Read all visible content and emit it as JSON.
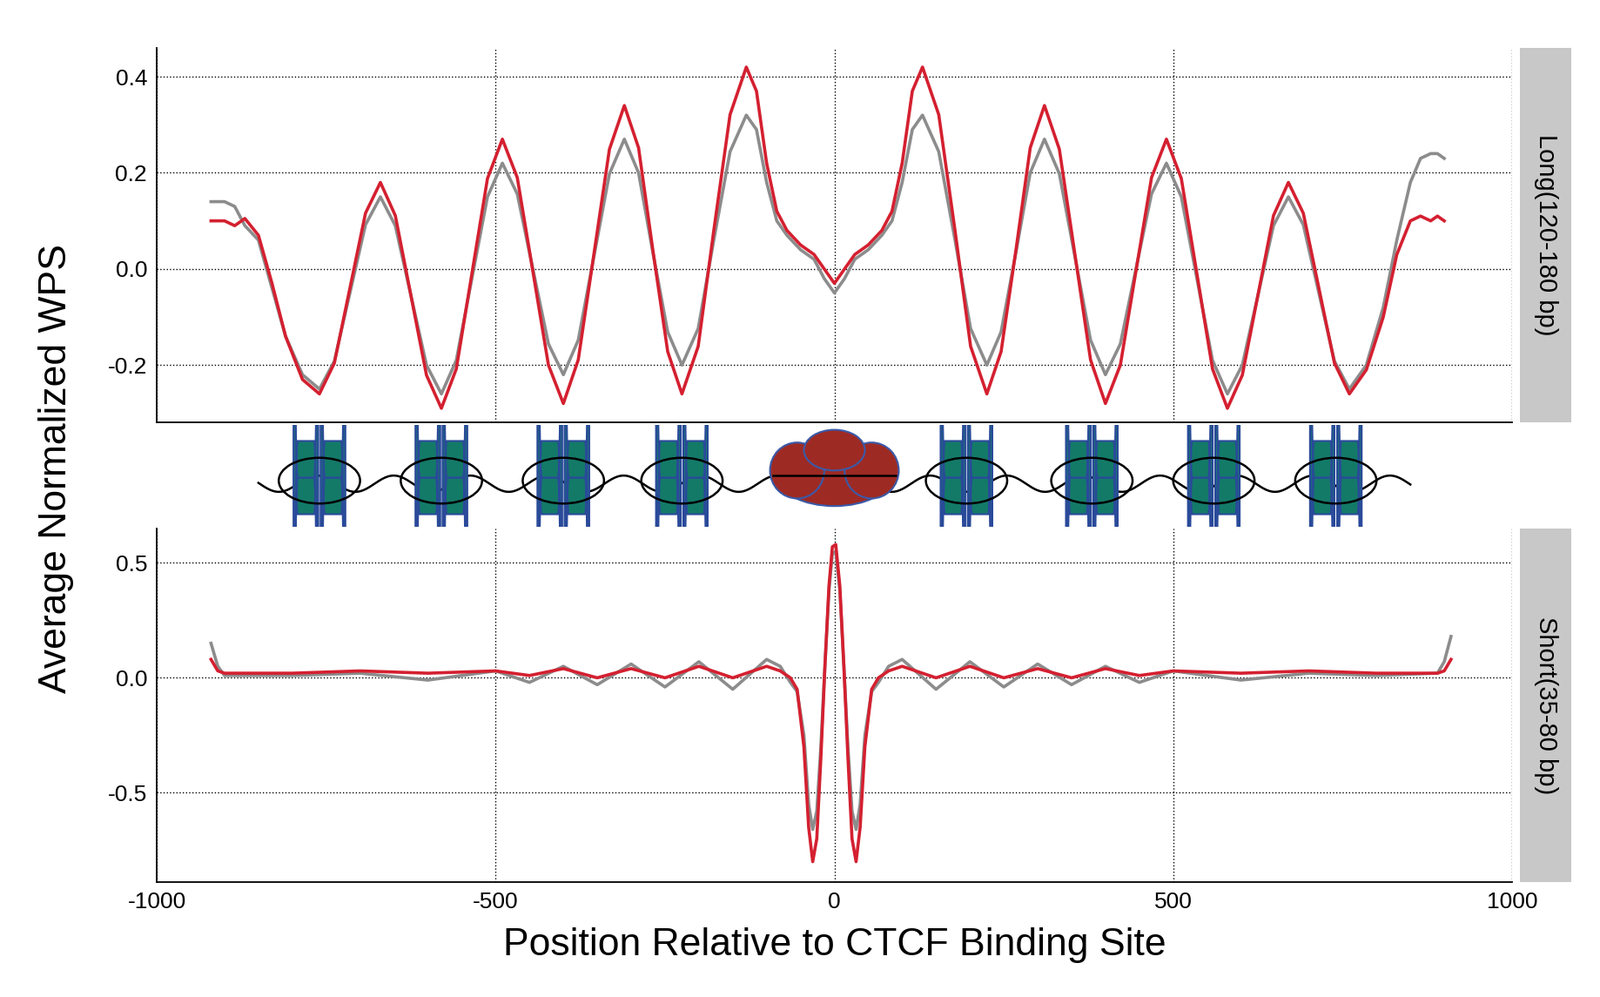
{
  "chart_data": [
    {
      "type": "line",
      "title": "Long(120-180 bp)",
      "y_label": "Average Normalized WPS",
      "x": [
        -920,
        -900,
        -885,
        -870,
        -850,
        -830,
        -810,
        -785,
        -760,
        -738,
        -715,
        -692,
        -670,
        -648,
        -625,
        -602,
        -580,
        -558,
        -535,
        -512,
        -490,
        -468,
        -445,
        -422,
        -400,
        -378,
        -355,
        -332,
        -310,
        -289,
        -268,
        -246,
        -225,
        -201,
        -178,
        -154,
        -130,
        -115,
        -100,
        -85,
        -70,
        -50,
        -30,
        -15,
        0,
        15,
        30,
        50,
        70,
        85,
        100,
        115,
        130,
        154,
        178,
        201,
        225,
        246,
        268,
        289,
        310,
        332,
        355,
        378,
        400,
        422,
        445,
        468,
        490,
        512,
        535,
        558,
        580,
        602,
        625,
        648,
        670,
        692,
        715,
        738,
        760,
        785,
        810,
        830,
        850,
        865,
        880,
        890,
        900
      ],
      "series": [
        {
          "color": "#8c8c8c",
          "values": [
            0.14,
            0.14,
            0.13,
            0.09,
            0.06,
            -0.04,
            -0.14,
            -0.22,
            -0.25,
            -0.192,
            -0.05,
            0.092,
            0.15,
            0.09,
            -0.055,
            -0.2,
            -0.26,
            -0.19,
            -0.02,
            0.15,
            0.22,
            0.156,
            0.0,
            -0.156,
            -0.22,
            -0.148,
            0.025,
            0.198,
            0.27,
            0.2,
            0.035,
            -0.131,
            -0.2,
            -0.124,
            0.06,
            0.244,
            0.32,
            0.29,
            0.18,
            0.1,
            0.07,
            0.04,
            0.02,
            -0.02,
            -0.05,
            -0.02,
            0.02,
            0.04,
            0.07,
            0.1,
            0.18,
            0.29,
            0.32,
            0.244,
            0.06,
            -0.124,
            -0.2,
            -0.131,
            0.035,
            0.2,
            0.27,
            0.198,
            0.025,
            -0.148,
            -0.22,
            -0.156,
            0.0,
            0.156,
            0.22,
            0.15,
            -0.02,
            -0.19,
            -0.26,
            -0.2,
            -0.055,
            0.09,
            0.15,
            0.092,
            -0.05,
            -0.192,
            -0.25,
            -0.2,
            -0.08,
            0.06,
            0.18,
            0.23,
            0.24,
            0.24,
            0.23
          ]
        },
        {
          "color": "#d42030",
          "values": [
            0.1,
            0.1,
            0.09,
            0.105,
            0.07,
            -0.03,
            -0.14,
            -0.23,
            -0.26,
            -0.196,
            -0.04,
            0.116,
            0.18,
            0.111,
            -0.055,
            -0.221,
            -0.29,
            -0.208,
            -0.01,
            0.188,
            0.27,
            0.19,
            -0.005,
            -0.2,
            -0.28,
            -0.189,
            0.03,
            0.249,
            0.34,
            0.252,
            0.04,
            -0.172,
            -0.26,
            -0.161,
            0.08,
            0.321,
            0.42,
            0.37,
            0.22,
            0.12,
            0.08,
            0.05,
            0.03,
            0.0,
            -0.03,
            0.0,
            0.03,
            0.05,
            0.08,
            0.12,
            0.22,
            0.37,
            0.42,
            0.321,
            0.08,
            -0.161,
            -0.26,
            -0.172,
            0.04,
            0.252,
            0.34,
            0.249,
            0.03,
            -0.189,
            -0.28,
            -0.2,
            -0.005,
            0.19,
            0.27,
            0.188,
            -0.01,
            -0.208,
            -0.29,
            -0.221,
            -0.055,
            0.111,
            0.18,
            0.116,
            -0.04,
            -0.196,
            -0.26,
            -0.21,
            -0.1,
            0.03,
            0.1,
            0.11,
            0.1,
            0.11,
            0.1
          ]
        }
      ],
      "xlim": [
        -1000,
        1000
      ],
      "xticks": [
        -1000,
        -500,
        0,
        500,
        1000
      ],
      "ylim": [
        -0.32,
        0.46
      ],
      "yticks": [
        -0.2,
        {
          "value": 0,
          "label": "0.0"
        },
        0.2,
        0.4
      ],
      "grid": true,
      "tick_labels": "y"
    },
    {
      "type": "line",
      "title": "Short(35-80 bp)",
      "x_label": "Position Relative to CTCF Binding Site",
      "x": [
        -920,
        -910,
        -900,
        -800,
        -700,
        -600,
        -500,
        -450,
        -400,
        -350,
        -300,
        -250,
        -200,
        -150,
        -100,
        -80,
        -65,
        -55,
        -45,
        -38,
        -32,
        -26,
        -20,
        -14,
        -8,
        -3,
        2,
        8,
        14,
        20,
        26,
        32,
        38,
        45,
        55,
        65,
        80,
        100,
        150,
        200,
        250,
        300,
        350,
        400,
        450,
        500,
        600,
        700,
        800,
        890,
        900,
        910
      ],
      "series": [
        {
          "color": "#8c8c8c",
          "values": [
            0.15,
            0.05,
            0.01,
            0.01,
            0.02,
            -0.01,
            0.03,
            -0.02,
            0.05,
            -0.03,
            0.06,
            -0.04,
            0.07,
            -0.05,
            0.08,
            0.05,
            -0.02,
            -0.06,
            -0.25,
            -0.55,
            -0.66,
            -0.58,
            -0.3,
            0.05,
            0.38,
            0.54,
            0.55,
            0.38,
            0.05,
            -0.3,
            -0.58,
            -0.66,
            -0.55,
            -0.25,
            -0.06,
            -0.02,
            0.05,
            0.08,
            -0.05,
            0.07,
            -0.04,
            0.06,
            -0.03,
            0.05,
            -0.02,
            0.03,
            -0.01,
            0.02,
            0.01,
            0.02,
            0.07,
            0.18
          ]
        },
        {
          "color": "#d42030",
          "values": [
            0.08,
            0.03,
            0.02,
            0.02,
            0.03,
            0.02,
            0.03,
            0.01,
            0.04,
            0.0,
            0.04,
            0.0,
            0.05,
            0.0,
            0.05,
            0.03,
            0.0,
            -0.05,
            -0.3,
            -0.65,
            -0.8,
            -0.7,
            -0.35,
            0.05,
            0.4,
            0.57,
            0.58,
            0.4,
            0.05,
            -0.35,
            -0.7,
            -0.8,
            -0.65,
            -0.3,
            -0.05,
            0.0,
            0.03,
            0.05,
            0.0,
            0.05,
            0.0,
            0.04,
            0.0,
            0.04,
            0.01,
            0.03,
            0.02,
            0.03,
            0.02,
            0.02,
            0.03,
            0.08
          ]
        }
      ],
      "xlim": [
        -1000,
        1000
      ],
      "xticks": [
        -1000,
        -500,
        0,
        500,
        1000
      ],
      "ylim": [
        -0.89,
        0.65
      ],
      "yticks": [
        -0.5,
        {
          "value": 0,
          "label": "0.0"
        },
        0.5
      ],
      "grid": true
    }
  ]
}
